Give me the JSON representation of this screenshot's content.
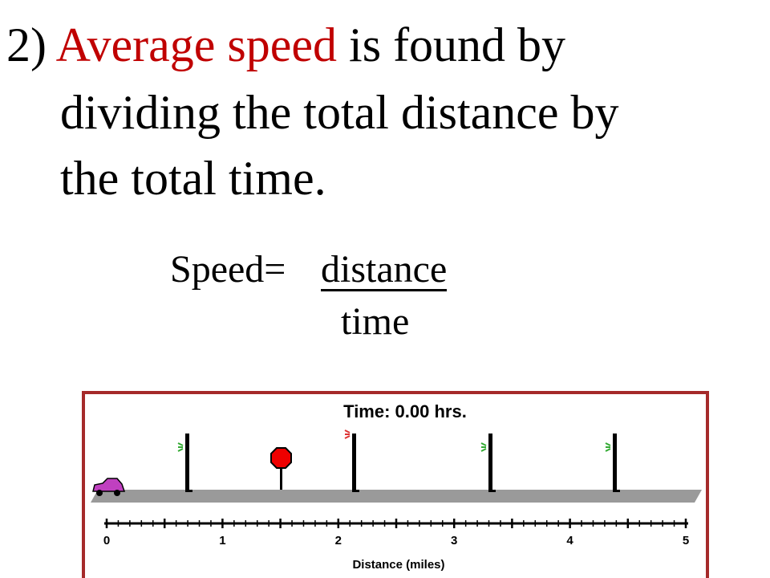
{
  "slide": {
    "lines": [
      {
        "parts": [
          "2) ",
          "Average speed",
          " is found by"
        ]
      },
      {
        "parts": [
          "dividing the total distance by"
        ]
      },
      {
        "parts": [
          "the total time."
        ]
      }
    ],
    "formula": {
      "lhs": "Speed=",
      "numerator": "distance",
      "denominator": "time"
    },
    "simulation": {
      "clock": "Time: 0.00 hrs.",
      "axis_labels": [
        "0",
        "1",
        "2",
        "3",
        "4",
        "5"
      ],
      "axis_title": "Distance (miles)"
    }
  }
}
